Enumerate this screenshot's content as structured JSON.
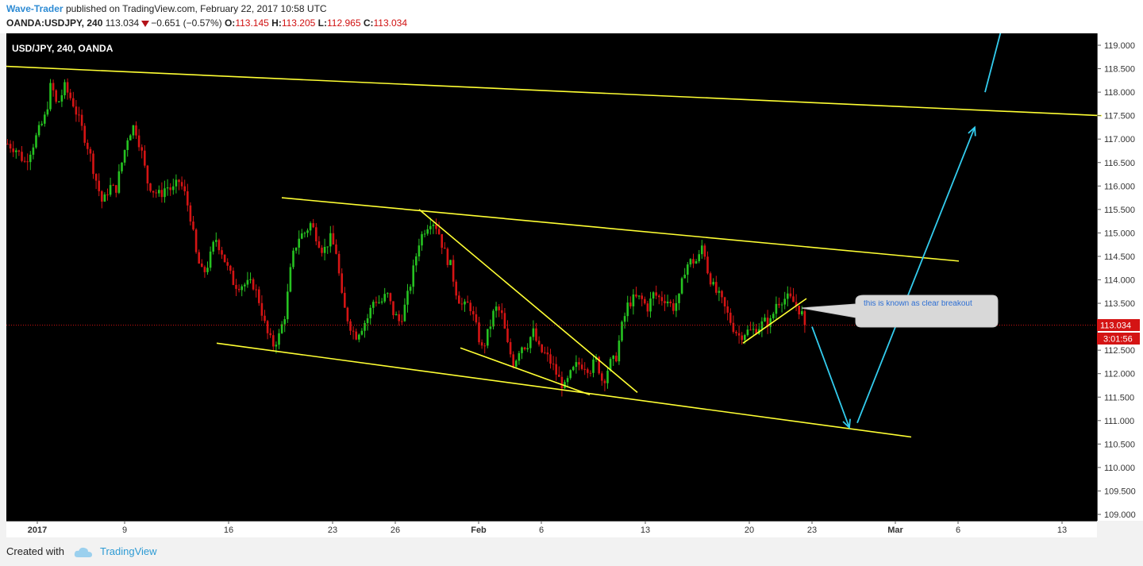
{
  "header": {
    "author": "Wave-Trader",
    "published_text": "published on TradingView.com, February 22, 2017 10:58 UTC",
    "symbol": "OANDA:USDJPY, 240",
    "last": "113.034",
    "change": "−0.651 (−0.57%)",
    "o_label": "O:",
    "o_value": "113.145",
    "h_label": "H:",
    "h_value": "113.205",
    "l_label": "L:",
    "l_value": "112.965",
    "c_label": "C:",
    "c_value": "113.034"
  },
  "chart_title": "USD/JPY, 240, OANDA",
  "annotation_text": "this is known as clear breakout",
  "price_tag": "113.034",
  "countdown_tag": "3:01:56",
  "footer": {
    "created_with": "Created with",
    "brand": "TradingView"
  },
  "colors": {
    "background": "#000000",
    "up_candle": "#26c221",
    "down_candle": "#d41414",
    "trendline": "#ffff33",
    "projection": "#33ccee",
    "price_line": "#d41414",
    "author_link": "#2d8bd4"
  },
  "icons": [
    "tradingview-cloud-icon",
    "down-triangle-icon"
  ],
  "chart_data": {
    "type": "candlestick",
    "title": "USD/JPY, 240, OANDA",
    "xlabel": "",
    "ylabel": "",
    "ylim": [
      108.9,
      119.25
    ],
    "grid": false,
    "x_ticks": [
      "2017",
      "9",
      "16",
      "23",
      "26",
      "Feb",
      "6",
      "13",
      "20",
      "23",
      "Mar",
      "6",
      "13"
    ],
    "y_ticks": [
      "119.000",
      "118.500",
      "118.000",
      "117.500",
      "117.000",
      "116.500",
      "116.000",
      "115.500",
      "115.000",
      "114.500",
      "114.000",
      "113.500",
      "113.000",
      "112.500",
      "112.000",
      "111.500",
      "111.000",
      "110.500",
      "110.000",
      "109.500",
      "109.000"
    ],
    "last_price": 113.034,
    "price_path": [
      [
        0,
        116.9
      ],
      [
        10,
        116.8
      ],
      [
        22,
        116.5
      ],
      [
        35,
        117.0
      ],
      [
        48,
        117.5
      ],
      [
        55,
        118.2
      ],
      [
        62,
        117.7
      ],
      [
        72,
        118.1
      ],
      [
        82,
        117.8
      ],
      [
        92,
        117.3
      ],
      [
        102,
        116.8
      ],
      [
        112,
        116.1
      ],
      [
        120,
        115.6
      ],
      [
        128,
        116.0
      ],
      [
        136,
        115.9
      ],
      [
        144,
        116.5
      ],
      [
        152,
        117.1
      ],
      [
        160,
        117.3
      ],
      [
        168,
        116.8
      ],
      [
        176,
        116.1
      ],
      [
        184,
        115.9
      ],
      [
        192,
        115.8
      ],
      [
        200,
        116.0
      ],
      [
        208,
        115.9
      ],
      [
        216,
        116.1
      ],
      [
        222,
        115.9
      ],
      [
        230,
        115.4
      ],
      [
        238,
        114.5
      ],
      [
        246,
        114.1
      ],
      [
        254,
        114.4
      ],
      [
        262,
        114.9
      ],
      [
        270,
        114.6
      ],
      [
        278,
        114.2
      ],
      [
        286,
        113.9
      ],
      [
        294,
        113.9
      ],
      [
        302,
        113.9
      ],
      [
        310,
        113.9
      ],
      [
        318,
        113.5
      ],
      [
        326,
        112.9
      ],
      [
        334,
        112.6
      ],
      [
        342,
        112.8
      ],
      [
        350,
        113.3
      ],
      [
        358,
        114.4
      ],
      [
        366,
        114.9
      ],
      [
        374,
        115.0
      ],
      [
        382,
        115.2
      ],
      [
        390,
        114.9
      ],
      [
        398,
        114.6
      ],
      [
        406,
        114.9
      ],
      [
        414,
        114.6
      ],
      [
        422,
        113.5
      ],
      [
        430,
        113.1
      ],
      [
        438,
        112.8
      ],
      [
        446,
        113.0
      ],
      [
        454,
        113.2
      ],
      [
        462,
        113.6
      ],
      [
        470,
        113.5
      ],
      [
        478,
        113.7
      ],
      [
        486,
        113.3
      ],
      [
        494,
        113.1
      ],
      [
        502,
        113.5
      ],
      [
        510,
        114.1
      ],
      [
        518,
        114.8
      ],
      [
        526,
        115.1
      ],
      [
        534,
        115.3
      ],
      [
        542,
        115.1
      ],
      [
        550,
        114.6
      ],
      [
        558,
        114.3
      ],
      [
        566,
        113.7
      ],
      [
        574,
        113.4
      ],
      [
        582,
        113.5
      ],
      [
        590,
        113.0
      ],
      [
        598,
        112.5
      ],
      [
        606,
        112.9
      ],
      [
        614,
        113.4
      ],
      [
        622,
        113.3
      ],
      [
        630,
        112.6
      ],
      [
        638,
        112.2
      ],
      [
        646,
        112.6
      ],
      [
        654,
        112.6
      ],
      [
        662,
        112.9
      ],
      [
        670,
        112.5
      ],
      [
        678,
        112.4
      ],
      [
        686,
        112.2
      ],
      [
        694,
        111.9
      ],
      [
        702,
        111.7
      ],
      [
        710,
        112.0
      ],
      [
        718,
        112.2
      ],
      [
        726,
        112.2
      ],
      [
        734,
        112.1
      ],
      [
        742,
        112.3
      ],
      [
        750,
        111.8
      ],
      [
        758,
        112.2
      ],
      [
        766,
        112.3
      ],
      [
        774,
        113.0
      ],
      [
        782,
        113.5
      ],
      [
        790,
        113.6
      ],
      [
        798,
        113.6
      ],
      [
        806,
        113.4
      ],
      [
        814,
        113.7
      ],
      [
        822,
        113.6
      ],
      [
        830,
        113.6
      ],
      [
        838,
        113.4
      ],
      [
        846,
        113.6
      ],
      [
        854,
        114.3
      ],
      [
        862,
        114.4
      ],
      [
        870,
        114.4
      ],
      [
        876,
        114.8
      ],
      [
        882,
        114.2
      ],
      [
        890,
        113.8
      ],
      [
        898,
        113.6
      ],
      [
        906,
        113.3
      ],
      [
        914,
        113.0
      ],
      [
        922,
        112.8
      ],
      [
        930,
        112.9
      ],
      [
        938,
        112.9
      ],
      [
        946,
        113.0
      ],
      [
        954,
        113.1
      ],
      [
        962,
        113.1
      ],
      [
        968,
        113.5
      ],
      [
        976,
        113.6
      ],
      [
        984,
        113.6
      ],
      [
        992,
        113.5
      ],
      [
        1000,
        113.3
      ],
      [
        1006,
        113.03
      ]
    ],
    "trendlines": [
      {
        "from": [
          0,
          118.55
        ],
        "to": [
          1380,
          117.5
        ]
      },
      {
        "from": [
          347,
          115.75
        ],
        "to": [
          1200,
          114.4
        ]
      },
      {
        "from": [
          265,
          112.65
        ],
        "to": [
          1140,
          110.65
        ]
      },
      {
        "from": [
          520,
          115.5
        ],
        "to": [
          795,
          111.6
        ]
      },
      {
        "from": [
          572,
          112.55
        ],
        "to": [
          735,
          111.55
        ]
      },
      {
        "from": [
          928,
          112.65
        ],
        "to": [
          1008,
          113.6
        ]
      }
    ],
    "projections": [
      {
        "from": [
          1015,
          113.0
        ],
        "to": [
          1062,
          110.85
        ]
      },
      {
        "from": [
          1072,
          110.95
        ],
        "to": [
          1220,
          117.25
        ]
      },
      {
        "from": [
          1233,
          118.0
        ],
        "to": [
          1253,
          119.3
        ]
      }
    ]
  }
}
